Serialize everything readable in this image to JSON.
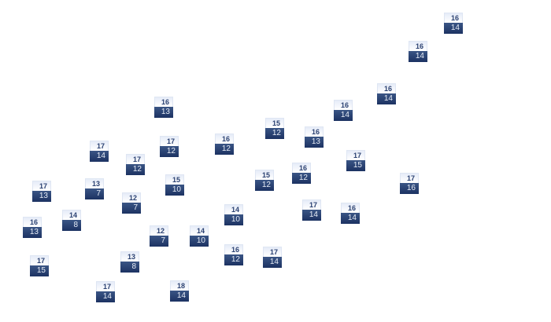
{
  "colors": {
    "top_fill": "#eef2fb",
    "top_text": "#2c4272",
    "bottom_fill": "#23396a",
    "bottom_text": "#e6ecf6"
  },
  "markers": [
    {
      "top": "16",
      "bottom": "14"
    },
    {
      "top": "16",
      "bottom": "14"
    },
    {
      "top": "16",
      "bottom": "14"
    },
    {
      "top": "16",
      "bottom": "14"
    },
    {
      "top": "16",
      "bottom": "13"
    },
    {
      "top": "15",
      "bottom": "12"
    },
    {
      "top": "16",
      "bottom": "13"
    },
    {
      "top": "16",
      "bottom": "12"
    },
    {
      "top": "17",
      "bottom": "12"
    },
    {
      "top": "17",
      "bottom": "14"
    },
    {
      "top": "17",
      "bottom": "12"
    },
    {
      "top": "17",
      "bottom": "15"
    },
    {
      "top": "16",
      "bottom": "12"
    },
    {
      "top": "15",
      "bottom": "12"
    },
    {
      "top": "15",
      "bottom": "10"
    },
    {
      "top": "17",
      "bottom": "16"
    },
    {
      "top": "17",
      "bottom": "13"
    },
    {
      "top": "13",
      "bottom": "7"
    },
    {
      "top": "12",
      "bottom": "7"
    },
    {
      "top": "14",
      "bottom": "10"
    },
    {
      "top": "17",
      "bottom": "14"
    },
    {
      "top": "16",
      "bottom": "14"
    },
    {
      "top": "14",
      "bottom": "8"
    },
    {
      "top": "16",
      "bottom": "13"
    },
    {
      "top": "12",
      "bottom": "7"
    },
    {
      "top": "14",
      "bottom": "10"
    },
    {
      "top": "16",
      "bottom": "12"
    },
    {
      "top": "17",
      "bottom": "14"
    },
    {
      "top": "13",
      "bottom": "8"
    },
    {
      "top": "17",
      "bottom": "15"
    },
    {
      "top": "17",
      "bottom": "14"
    },
    {
      "top": "18",
      "bottom": "14"
    }
  ]
}
